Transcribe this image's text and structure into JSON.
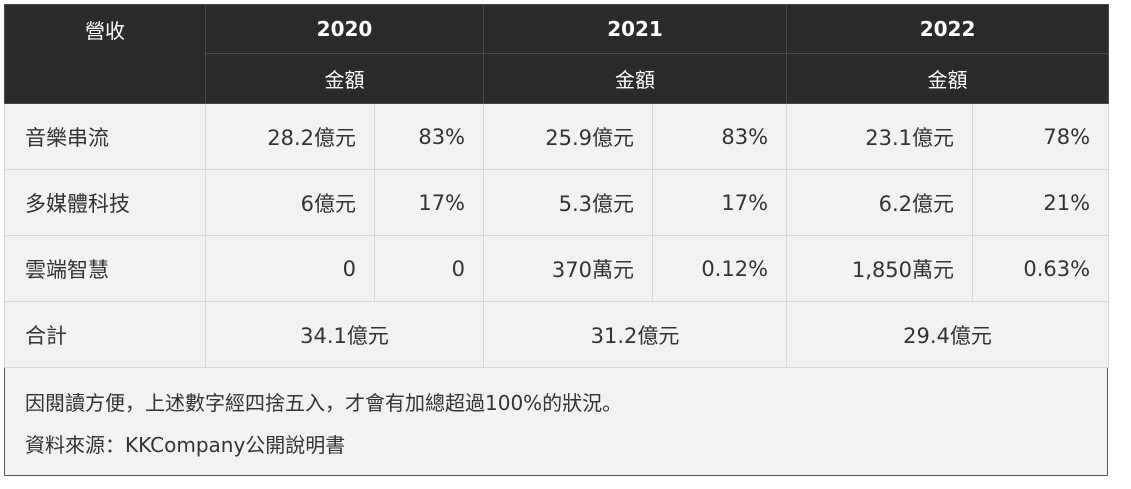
{
  "header": {
    "corner": "營收",
    "years": [
      "2020",
      "2021",
      "2022"
    ],
    "sub": [
      "金額",
      "金額",
      "金額"
    ]
  },
  "rows": [
    {
      "label": "音樂串流",
      "cells": [
        "28.2億元",
        "83%",
        "25.9億元",
        "83%",
        "23.1億元",
        "78%"
      ]
    },
    {
      "label": "多媒體科技",
      "cells": [
        "6億元",
        "17%",
        "5.3億元",
        "17%",
        "6.2億元",
        "21%"
      ]
    },
    {
      "label": "雲端智慧",
      "cells": [
        "0",
        "0",
        "370萬元",
        "0.12%",
        "1,850萬元",
        "0.63%"
      ]
    }
  ],
  "total": {
    "label": "合計",
    "values": [
      "34.1億元",
      "31.2億元",
      "29.4億元"
    ]
  },
  "notes": [
    "因閱讀方便，上述數字經四捨五入，才會有加總超過100%的狀況。",
    "資料來源：KKCompany公開說明書"
  ]
}
